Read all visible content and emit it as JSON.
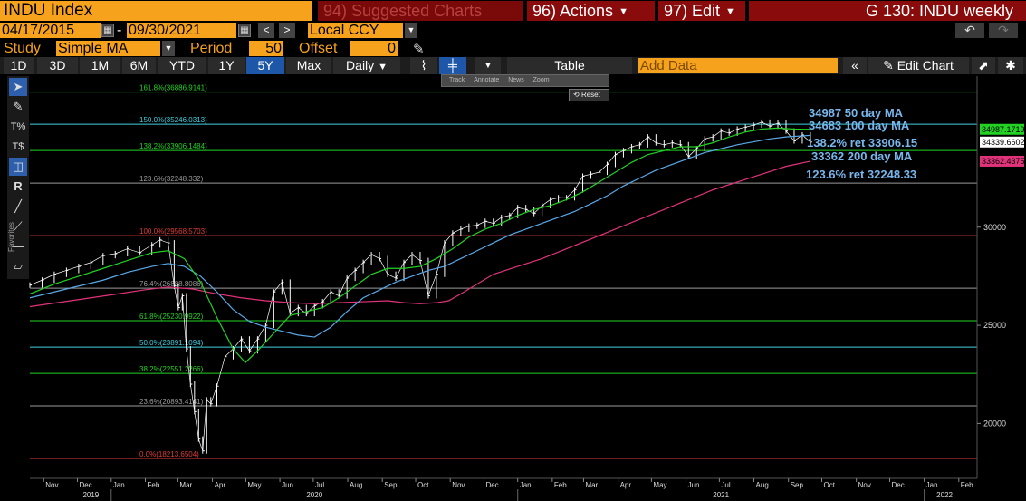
{
  "header": {
    "ticker": "INDU Index",
    "suggested": "94) Suggested Charts",
    "actions": "96) Actions",
    "edit": "97) Edit",
    "chart_id": "G 130: INDU weekly"
  },
  "range": {
    "start": "04/17/2015",
    "dash": "-",
    "end": "09/30/2021",
    "currency": "Local CCY",
    "prev": "<",
    "next": ">"
  },
  "study": {
    "label": "Study",
    "type": "Simple MA",
    "period_label": "Period",
    "period": "50",
    "offset_label": "Offset",
    "offset": "0"
  },
  "toolbar": {
    "ranges": [
      "1D",
      "3D",
      "1M",
      "6M",
      "YTD",
      "1Y",
      "5Y",
      "Max"
    ],
    "active_range": "5Y",
    "frequency": "Daily",
    "table": "Table",
    "add_data": "Add Data",
    "edit_chart": "Edit Chart"
  },
  "sidebar": {
    "favorites": "Favorites"
  },
  "popup": {
    "items": [
      "Track",
      "Annotate",
      "News",
      "Zoom"
    ],
    "reset": "Reset"
  },
  "colors": {
    "price": "#ffffff",
    "ma50": "#22d323",
    "ma100": "#5aa9e8",
    "ma200": "#e0337a",
    "background": "#000000",
    "accent": "#f6a21c"
  },
  "chart_data": {
    "type": "line",
    "title": "INDU weekly",
    "ylim": [
      17200,
      37700
    ],
    "y_ticks": [
      20000,
      25000,
      30000
    ],
    "x_ticks": [
      {
        "label": "Nov",
        "t": 2019.834
      },
      {
        "label": "Dec",
        "t": 2019.917
      },
      {
        "label": "Jan",
        "t": 2020.0
      },
      {
        "label": "Feb",
        "t": 2020.084
      },
      {
        "label": "Mar",
        "t": 2020.164
      },
      {
        "label": "Apr",
        "t": 2020.249
      },
      {
        "label": "May",
        "t": 2020.331
      },
      {
        "label": "Jun",
        "t": 2020.415
      },
      {
        "label": "Jul",
        "t": 2020.497
      },
      {
        "label": "Aug",
        "t": 2020.582
      },
      {
        "label": "Sep",
        "t": 2020.667
      },
      {
        "label": "Oct",
        "t": 2020.749
      },
      {
        "label": "Nov",
        "t": 2020.834
      },
      {
        "label": "Dec",
        "t": 2020.917
      },
      {
        "label": "Jan",
        "t": 2021.0
      },
      {
        "label": "Feb",
        "t": 2021.085
      },
      {
        "label": "Mar",
        "t": 2021.162
      },
      {
        "label": "Apr",
        "t": 2021.247
      },
      {
        "label": "May",
        "t": 2021.329
      },
      {
        "label": "Jun",
        "t": 2021.414
      },
      {
        "label": "Jul",
        "t": 2021.496
      },
      {
        "label": "Aug",
        "t": 2021.581
      },
      {
        "label": "Sep",
        "t": 2021.666
      },
      {
        "label": "Oct",
        "t": 2021.748
      },
      {
        "label": "Nov",
        "t": 2021.833
      },
      {
        "label": "Dec",
        "t": 2021.915
      },
      {
        "label": "Jan",
        "t": 2022.0
      },
      {
        "label": "Feb",
        "t": 2022.085
      }
    ],
    "years": [
      {
        "label": "2019",
        "t": 2019.95
      },
      {
        "label": "2020",
        "t": 2020.5
      },
      {
        "label": "2021",
        "t": 2021.5
      },
      {
        "label": "2022",
        "t": 2022.05
      }
    ],
    "x_range": [
      2019.8,
      2022.13
    ],
    "fib_levels": [
      {
        "label": "161.8%(36886.9141)",
        "value": 36886.9141,
        "color": "#22d323"
      },
      {
        "label": "150.0%(35246.0313)",
        "value": 35246.0313,
        "color": "#3fd0e0"
      },
      {
        "label": "138.2%(33906.1484)",
        "value": 33906.1484,
        "color": "#22d323"
      },
      {
        "label": "123.6%(32248.332)",
        "value": 32248.332,
        "color": "#9a9a9a"
      },
      {
        "label": "100.0%(29568.5703)",
        "value": 29568.5703,
        "color": "#e23b3b"
      },
      {
        "label": "76.4%(26888.8086)",
        "value": 26888.8086,
        "color": "#9a9a9a"
      },
      {
        "label": "61.8%(25230.9922)",
        "value": 25230.9922,
        "color": "#22d323"
      },
      {
        "label": "50.0%(23891.1094)",
        "value": 23891.1094,
        "color": "#3fd0e0"
      },
      {
        "label": "38.2%(22551.2266)",
        "value": 22551.2266,
        "color": "#22d323"
      },
      {
        "label": "23.6%(20893.4141)",
        "value": 20893.4141,
        "color": "#9a9a9a"
      },
      {
        "label": "0.0%(18213.6504)",
        "value": 18213.6504,
        "color": "#e23b3b"
      }
    ],
    "right_labels": [
      {
        "text": "34987.1719",
        "value": 34987.1719,
        "bg": "#22d323",
        "fg": "#000000"
      },
      {
        "text": "34339.6602",
        "value": 34339.6602,
        "bg": "#ffffff",
        "fg": "#000000"
      },
      {
        "text": "33362.4375",
        "value": 33362.4375,
        "bg": "#e0337a",
        "fg": "#000000"
      }
    ],
    "annotations": [
      "34987 50 day MA",
      "34683 100 day MA",
      "138.2% ret 33906.15",
      "33362 200 day MA",
      "123.6% ret 32248.33"
    ],
    "price": [
      [
        2019.8,
        27050
      ],
      [
        2019.83,
        27300
      ],
      [
        2019.86,
        27600
      ],
      [
        2019.89,
        27800
      ],
      [
        2019.92,
        28000
      ],
      [
        2019.95,
        28200
      ],
      [
        2019.98,
        28550
      ],
      [
        2020.01,
        28650
      ],
      [
        2020.04,
        28900
      ],
      [
        2020.07,
        28700
      ],
      [
        2020.1,
        29100
      ],
      [
        2020.12,
        29350
      ],
      [
        2020.14,
        29200
      ],
      [
        2020.155,
        27000
      ],
      [
        2020.165,
        25900
      ],
      [
        2020.175,
        26500
      ],
      [
        2020.185,
        23800
      ],
      [
        2020.195,
        22000
      ],
      [
        2020.205,
        20600
      ],
      [
        2020.215,
        19200
      ],
      [
        2020.225,
        18600
      ],
      [
        2020.235,
        21200
      ],
      [
        2020.245,
        21000
      ],
      [
        2020.26,
        21900
      ],
      [
        2020.28,
        23400
      ],
      [
        2020.3,
        23800
      ],
      [
        2020.32,
        24300
      ],
      [
        2020.34,
        23700
      ],
      [
        2020.36,
        24300
      ],
      [
        2020.38,
        25000
      ],
      [
        2020.4,
        26700
      ],
      [
        2020.42,
        27200
      ],
      [
        2020.44,
        25600
      ],
      [
        2020.46,
        25900
      ],
      [
        2020.48,
        25600
      ],
      [
        2020.5,
        26000
      ],
      [
        2020.52,
        26200
      ],
      [
        2020.54,
        26700
      ],
      [
        2020.56,
        26500
      ],
      [
        2020.58,
        27400
      ],
      [
        2020.6,
        27800
      ],
      [
        2020.62,
        28200
      ],
      [
        2020.64,
        28600
      ],
      [
        2020.66,
        28400
      ],
      [
        2020.68,
        27600
      ],
      [
        2020.7,
        27400
      ],
      [
        2020.72,
        28200
      ],
      [
        2020.74,
        28600
      ],
      [
        2020.76,
        28300
      ],
      [
        2020.78,
        26500
      ],
      [
        2020.8,
        27600
      ],
      [
        2020.82,
        29200
      ],
      [
        2020.84,
        29700
      ],
      [
        2020.86,
        29900
      ],
      [
        2020.88,
        30050
      ],
      [
        2020.9,
        30100
      ],
      [
        2020.92,
        30300
      ],
      [
        2020.94,
        30200
      ],
      [
        2020.96,
        30500
      ],
      [
        2020.98,
        30600
      ],
      [
        2021.0,
        31000
      ],
      [
        2021.02,
        30900
      ],
      [
        2021.04,
        30700
      ],
      [
        2021.06,
        31100
      ],
      [
        2021.08,
        31400
      ],
      [
        2021.1,
        31500
      ],
      [
        2021.12,
        31500
      ],
      [
        2021.14,
        31900
      ],
      [
        2021.16,
        32600
      ],
      [
        2021.18,
        32700
      ],
      [
        2021.2,
        32800
      ],
      [
        2021.22,
        33200
      ],
      [
        2021.24,
        33700
      ],
      [
        2021.26,
        33900
      ],
      [
        2021.28,
        34100
      ],
      [
        2021.3,
        34200
      ],
      [
        2021.32,
        34600
      ],
      [
        2021.34,
        34300
      ],
      [
        2021.36,
        34200
      ],
      [
        2021.38,
        34300
      ],
      [
        2021.4,
        34200
      ],
      [
        2021.42,
        33600
      ],
      [
        2021.44,
        34000
      ],
      [
        2021.46,
        34500
      ],
      [
        2021.48,
        34600
      ],
      [
        2021.5,
        34900
      ],
      [
        2021.52,
        34800
      ],
      [
        2021.54,
        35000
      ],
      [
        2021.56,
        35100
      ],
      [
        2021.58,
        35200
      ],
      [
        2021.6,
        35350
      ],
      [
        2021.62,
        35150
      ],
      [
        2021.64,
        35300
      ],
      [
        2021.66,
        34900
      ],
      [
        2021.68,
        34400
      ],
      [
        2021.7,
        34700
      ],
      [
        2021.72,
        34340
      ]
    ],
    "ma50": [
      [
        2019.8,
        26600
      ],
      [
        2019.86,
        27100
      ],
      [
        2019.92,
        27500
      ],
      [
        2019.98,
        27900
      ],
      [
        2020.04,
        28300
      ],
      [
        2020.1,
        28700
      ],
      [
        2020.14,
        28800
      ],
      [
        2020.18,
        28400
      ],
      [
        2020.22,
        27200
      ],
      [
        2020.26,
        25400
      ],
      [
        2020.3,
        23800
      ],
      [
        2020.33,
        23100
      ],
      [
        2020.36,
        23700
      ],
      [
        2020.4,
        24600
      ],
      [
        2020.44,
        25500
      ],
      [
        2020.48,
        25700
      ],
      [
        2020.52,
        25900
      ],
      [
        2020.56,
        26400
      ],
      [
        2020.6,
        27000
      ],
      [
        2020.64,
        27600
      ],
      [
        2020.68,
        27900
      ],
      [
        2020.72,
        27900
      ],
      [
        2020.76,
        28000
      ],
      [
        2020.8,
        28400
      ],
      [
        2020.84,
        28900
      ],
      [
        2020.88,
        29500
      ],
      [
        2020.92,
        29900
      ],
      [
        2020.96,
        30200
      ],
      [
        2021.0,
        30600
      ],
      [
        2021.04,
        30900
      ],
      [
        2021.08,
        31100
      ],
      [
        2021.12,
        31400
      ],
      [
        2021.16,
        31800
      ],
      [
        2021.2,
        32300
      ],
      [
        2021.24,
        32800
      ],
      [
        2021.28,
        33300
      ],
      [
        2021.32,
        33700
      ],
      [
        2021.36,
        33900
      ],
      [
        2021.4,
        34100
      ],
      [
        2021.44,
        34100
      ],
      [
        2021.48,
        34300
      ],
      [
        2021.52,
        34600
      ],
      [
        2021.56,
        34850
      ],
      [
        2021.6,
        35000
      ],
      [
        2021.64,
        35050
      ],
      [
        2021.68,
        35000
      ],
      [
        2021.72,
        34987
      ]
    ],
    "ma100": [
      [
        2019.8,
        26400
      ],
      [
        2019.86,
        26700
      ],
      [
        2019.92,
        27000
      ],
      [
        2019.98,
        27300
      ],
      [
        2020.04,
        27700
      ],
      [
        2020.1,
        28000
      ],
      [
        2020.14,
        28150
      ],
      [
        2020.18,
        28000
      ],
      [
        2020.22,
        27500
      ],
      [
        2020.26,
        26700
      ],
      [
        2020.3,
        25800
      ],
      [
        2020.34,
        25200
      ],
      [
        2020.38,
        24900
      ],
      [
        2020.42,
        24700
      ],
      [
        2020.46,
        24500
      ],
      [
        2020.5,
        24400
      ],
      [
        2020.54,
        24900
      ],
      [
        2020.58,
        25700
      ],
      [
        2020.62,
        26400
      ],
      [
        2020.66,
        26800
      ],
      [
        2020.7,
        27200
      ],
      [
        2020.74,
        27500
      ],
      [
        2020.78,
        27800
      ],
      [
        2020.82,
        28000
      ],
      [
        2020.86,
        28400
      ],
      [
        2020.9,
        28800
      ],
      [
        2020.94,
        29200
      ],
      [
        2020.98,
        29600
      ],
      [
        2021.02,
        29900
      ],
      [
        2021.06,
        30200
      ],
      [
        2021.1,
        30500
      ],
      [
        2021.14,
        30800
      ],
      [
        2021.18,
        31200
      ],
      [
        2021.22,
        31600
      ],
      [
        2021.26,
        32100
      ],
      [
        2021.3,
        32500
      ],
      [
        2021.34,
        32900
      ],
      [
        2021.38,
        33200
      ],
      [
        2021.42,
        33500
      ],
      [
        2021.46,
        33800
      ],
      [
        2021.5,
        34000
      ],
      [
        2021.54,
        34200
      ],
      [
        2021.58,
        34350
      ],
      [
        2021.62,
        34500
      ],
      [
        2021.66,
        34600
      ],
      [
        2021.72,
        34683
      ]
    ],
    "ma200": [
      [
        2019.8,
        25950
      ],
      [
        2019.9,
        26250
      ],
      [
        2020.0,
        26550
      ],
      [
        2020.08,
        26800
      ],
      [
        2020.14,
        26950
      ],
      [
        2020.2,
        26850
      ],
      [
        2020.26,
        26600
      ],
      [
        2020.32,
        26400
      ],
      [
        2020.38,
        26250
      ],
      [
        2020.44,
        26150
      ],
      [
        2020.5,
        26100
      ],
      [
        2020.56,
        26150
      ],
      [
        2020.62,
        26200
      ],
      [
        2020.68,
        26250
      ],
      [
        2020.72,
        26150
      ],
      [
        2020.76,
        26100
      ],
      [
        2020.8,
        26150
      ],
      [
        2020.83,
        26250
      ],
      [
        2020.86,
        26600
      ],
      [
        2020.9,
        27100
      ],
      [
        2020.94,
        27600
      ],
      [
        2021.0,
        28000
      ],
      [
        2021.06,
        28400
      ],
      [
        2021.12,
        28900
      ],
      [
        2021.18,
        29400
      ],
      [
        2021.24,
        29900
      ],
      [
        2021.3,
        30400
      ],
      [
        2021.36,
        30900
      ],
      [
        2021.42,
        31400
      ],
      [
        2021.48,
        31900
      ],
      [
        2021.54,
        32300
      ],
      [
        2021.6,
        32700
      ],
      [
        2021.66,
        33100
      ],
      [
        2021.72,
        33362
      ]
    ]
  }
}
